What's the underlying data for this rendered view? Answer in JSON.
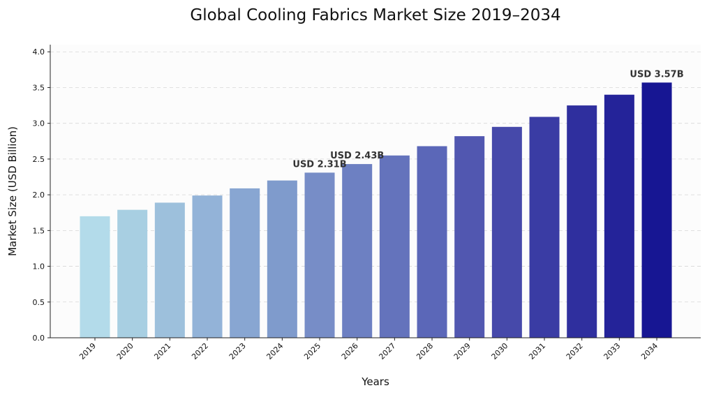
{
  "chart_data": {
    "type": "bar",
    "title": "Global Cooling Fabrics Market Size 2019–2034",
    "xlabel": "Years",
    "ylabel": "Market Size (USD Billion)",
    "ylim": [
      0,
      4.1
    ],
    "yticks": [
      "0.0",
      "0.5",
      "1.0",
      "1.5",
      "2.0",
      "2.5",
      "3.0",
      "3.5",
      "4.0"
    ],
    "grid": "y",
    "categories": [
      "2019",
      "2020",
      "2021",
      "2022",
      "2023",
      "2024",
      "2025",
      "2026",
      "2027",
      "2028",
      "2029",
      "2030",
      "2031",
      "2032",
      "2033",
      "2034"
    ],
    "values": [
      1.7,
      1.79,
      1.89,
      1.99,
      2.09,
      2.2,
      2.31,
      2.43,
      2.55,
      2.68,
      2.82,
      2.95,
      3.09,
      3.25,
      3.4,
      3.57
    ],
    "colors": [
      "#b3dbea",
      "#a8cfe2",
      "#9dc0dc",
      "#93b3d8",
      "#88a6d2",
      "#7f9bcc",
      "#778dc7",
      "#6d80c2",
      "#6473bc",
      "#5b67b8",
      "#5157b0",
      "#4649aa",
      "#3a3ca4",
      "#2f2f9e",
      "#242399",
      "#171693"
    ],
    "annotations": [
      {
        "category": "2025",
        "text": "USD 2.31B"
      },
      {
        "category": "2026",
        "text": "USD 2.43B"
      },
      {
        "category": "2034",
        "text": "USD 3.57B"
      }
    ]
  }
}
